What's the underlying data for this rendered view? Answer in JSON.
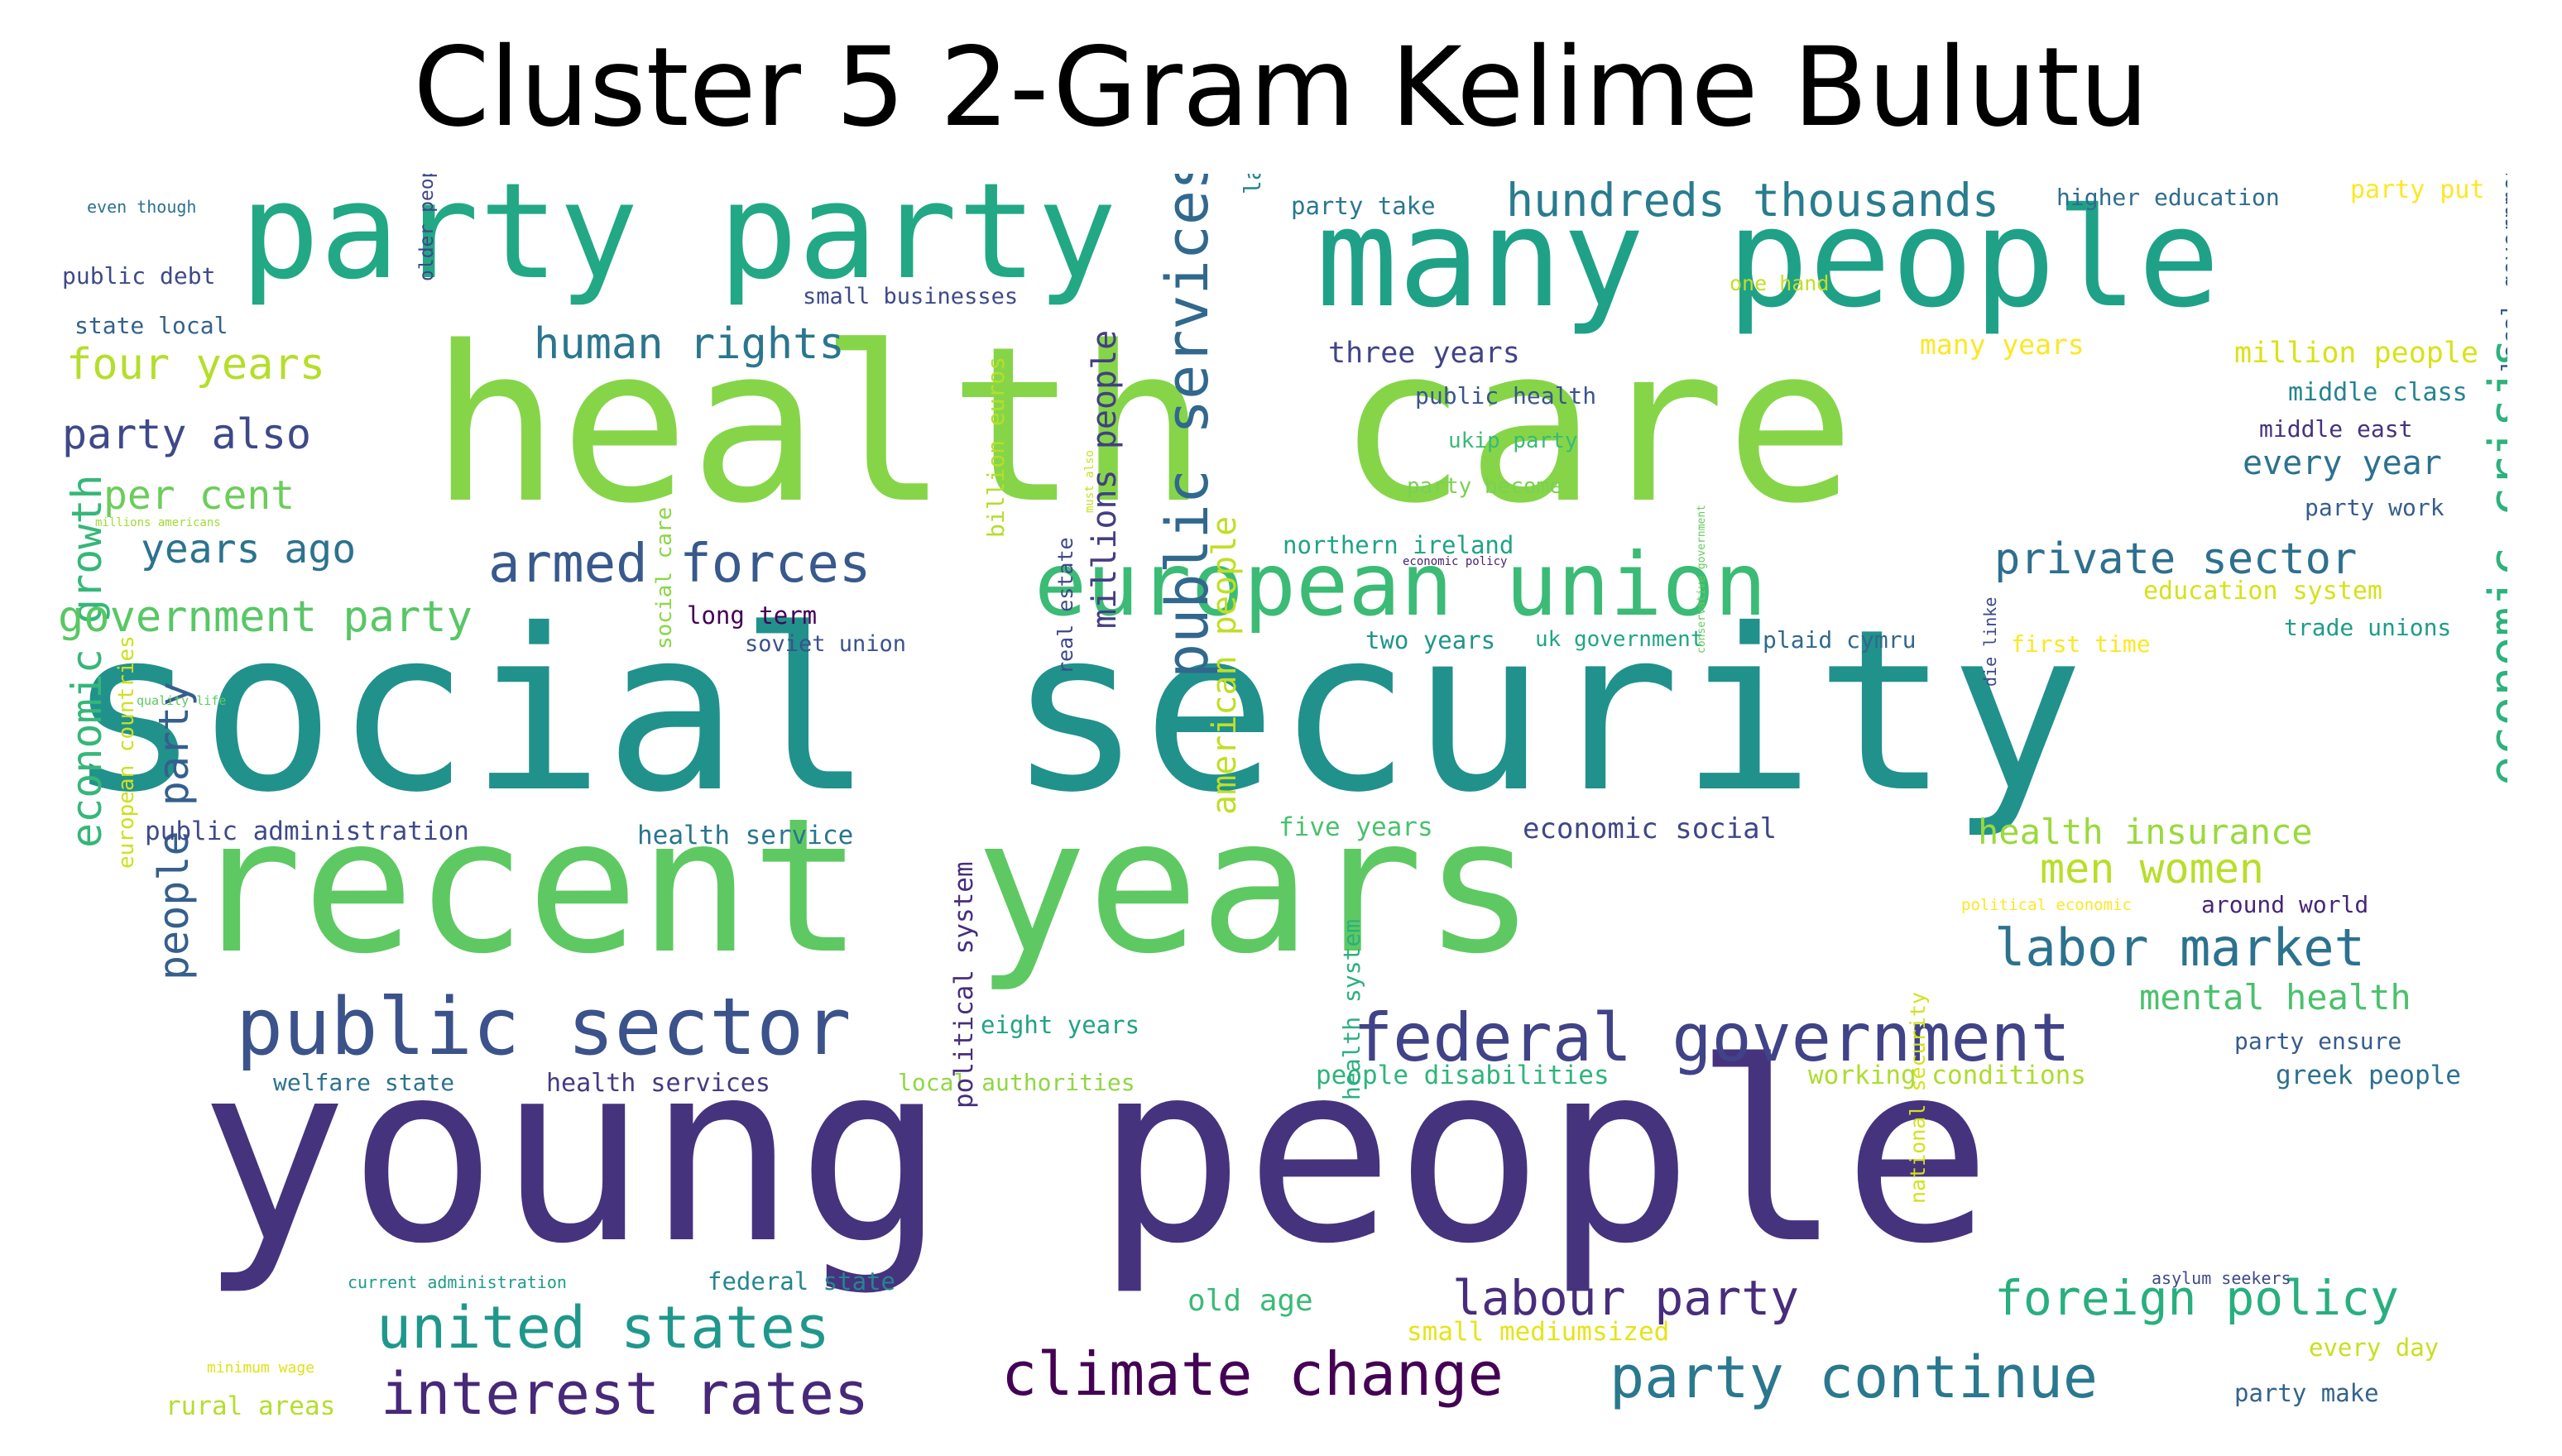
{
  "figure": {
    "title": "Cluster 5 2-Gram Kelime Bulutu"
  },
  "colors": {
    "background": "#ffffff",
    "title": "#000000"
  },
  "words": [
    {
      "text": "young people",
      "color": "#46337e"
    },
    {
      "text": "social security",
      "color": "#21918c"
    },
    {
      "text": "health care",
      "color": "#86d549"
    },
    {
      "text": "recent years",
      "color": "#5ec962"
    },
    {
      "text": "many people",
      "color": "#1fa188"
    },
    {
      "text": "party party",
      "color": "#22a884"
    },
    {
      "text": "european union",
      "color": "#3bbb75"
    },
    {
      "text": "public sector",
      "color": "#3b528b"
    },
    {
      "text": "federal government",
      "color": "#404387"
    },
    {
      "text": "climate change",
      "color": "#440154"
    },
    {
      "text": "party continue",
      "color": "#2a788e"
    },
    {
      "text": "interest rates",
      "color": "#482878"
    },
    {
      "text": "united states",
      "color": "#1f988b"
    },
    {
      "text": "public services",
      "color": "#31688e"
    },
    {
      "text": "economic crisis",
      "color": "#2db27d"
    },
    {
      "text": "labor market",
      "color": "#2c728e"
    },
    {
      "text": "armed forces",
      "color": "#38598c"
    },
    {
      "text": "hundreds thousands",
      "color": "#287c8e"
    },
    {
      "text": "human rights",
      "color": "#2a768e"
    },
    {
      "text": "private sector",
      "color": "#2e6f8e"
    },
    {
      "text": "labour party",
      "color": "#472d7b"
    },
    {
      "text": "foreign policy",
      "color": "#29af7f"
    },
    {
      "text": "economic growth",
      "color": "#35b779"
    },
    {
      "text": "people party",
      "color": "#355f8d"
    },
    {
      "text": "government party",
      "color": "#58c765"
    },
    {
      "text": "four years",
      "color": "#b5de2b"
    },
    {
      "text": "party also",
      "color": "#3e4989"
    },
    {
      "text": "per cent",
      "color": "#6ccd5a"
    },
    {
      "text": "years ago",
      "color": "#2c738e"
    },
    {
      "text": "men women",
      "color": "#b8de29"
    },
    {
      "text": "health insurance",
      "color": "#9bd93c"
    },
    {
      "text": "mental health",
      "color": "#4ac16d"
    },
    {
      "text": "millions people",
      "color": "#433e85"
    },
    {
      "text": "american people",
      "color": "#c0df25"
    },
    {
      "text": "every year",
      "color": "#2c728e"
    },
    {
      "text": "economic social",
      "color": "#3f4788"
    },
    {
      "text": "three years",
      "color": "#414487"
    },
    {
      "text": "million people",
      "color": "#d8e219"
    },
    {
      "text": "many years",
      "color": "#fde725"
    },
    {
      "text": "middle class",
      "color": "#25848e"
    },
    {
      "text": "middle east",
      "color": "#46327e"
    },
    {
      "text": "party work",
      "color": "#365d8d"
    },
    {
      "text": "around world",
      "color": "#482576"
    },
    {
      "text": "trade unions",
      "color": "#1e9c89"
    },
    {
      "text": "education system",
      "color": "#d5e21a"
    },
    {
      "text": "first time",
      "color": "#fde725"
    },
    {
      "text": "northern ireland",
      "color": "#20a386"
    },
    {
      "text": "party become",
      "color": "#7ad151"
    },
    {
      "text": "ukip party",
      "color": "#3aba76"
    },
    {
      "text": "public health",
      "color": "#3a548c"
    },
    {
      "text": "labour government",
      "color": "#24868e"
    },
    {
      "text": "party take",
      "color": "#2a788e"
    },
    {
      "text": "higher education",
      "color": "#2f6c8e"
    },
    {
      "text": "party put",
      "color": "#fde725"
    },
    {
      "text": "one hand",
      "color": "#c2df23"
    },
    {
      "text": "small businesses",
      "color": "#3e4a89"
    },
    {
      "text": "public debt",
      "color": "#3e4a89"
    },
    {
      "text": "state local",
      "color": "#33628d"
    },
    {
      "text": "even though",
      "color": "#2c728e"
    },
    {
      "text": "older people",
      "color": "#404688"
    },
    {
      "text": "millions americans",
      "color": "#a2da37"
    },
    {
      "text": "long term",
      "color": "#440154"
    },
    {
      "text": "soviet union",
      "color": "#3b528b"
    },
    {
      "text": "two years",
      "color": "#1f958b"
    },
    {
      "text": "uk government",
      "color": "#21a585"
    },
    {
      "text": "plaid cymru",
      "color": "#31688e"
    },
    {
      "text": "quality life",
      "color": "#5ec962"
    },
    {
      "text": "social care",
      "color": "#8bd646"
    },
    {
      "text": "billion euros",
      "color": "#b5de2b"
    },
    {
      "text": "real estate",
      "color": "#3e4989"
    },
    {
      "text": "must also",
      "color": "#c8e020"
    },
    {
      "text": "economic policy",
      "color": "#482173"
    },
    {
      "text": "public administration",
      "color": "#3e4a89"
    },
    {
      "text": "health service",
      "color": "#2a768e"
    },
    {
      "text": "five years",
      "color": "#4ac16d"
    },
    {
      "text": "conservative government",
      "color": "#65cb5e"
    },
    {
      "text": "die linke",
      "color": "#3e4989"
    },
    {
      "text": "political economic",
      "color": "#fde725"
    },
    {
      "text": "european countries",
      "color": "#cde11d"
    },
    {
      "text": "eight years",
      "color": "#20a386"
    },
    {
      "text": "welfare state",
      "color": "#2c728e"
    },
    {
      "text": "health services",
      "color": "#443a83"
    },
    {
      "text": "local authorities",
      "color": "#90d743"
    },
    {
      "text": "people disabilities",
      "color": "#2fb47c"
    },
    {
      "text": "working conditions",
      "color": "#addc30"
    },
    {
      "text": "party ensure",
      "color": "#375b8d"
    },
    {
      "text": "greek people",
      "color": "#2d708e"
    },
    {
      "text": "political system",
      "color": "#472e7c"
    },
    {
      "text": "health system",
      "color": "#2ab07f"
    },
    {
      "text": "national security",
      "color": "#d2e21b"
    },
    {
      "text": "current administration",
      "color": "#1f9a8a"
    },
    {
      "text": "federal state",
      "color": "#24868e"
    },
    {
      "text": "old age",
      "color": "#3aba76"
    },
    {
      "text": "small mediumsized",
      "color": "#e5e419"
    },
    {
      "text": "asylum seekers",
      "color": "#3e4989"
    },
    {
      "text": "every day",
      "color": "#c8e020"
    },
    {
      "text": "party make",
      "color": "#33638d"
    },
    {
      "text": "minimum wage",
      "color": "#dde318"
    },
    {
      "text": "rural areas",
      "color": "#b5de2b"
    },
    {
      "text": "local governments",
      "color": "#375b8d"
    }
  ]
}
